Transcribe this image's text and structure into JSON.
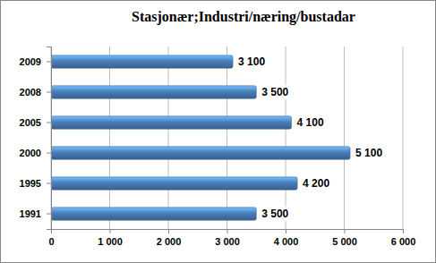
{
  "chart_data": {
    "type": "bar",
    "title": "Stasjonær;Industri/næring/bustadar",
    "orientation": "horizontal",
    "categories": [
      "1991",
      "1995",
      "2000",
      "2005",
      "2008",
      "2009"
    ],
    "values": [
      3500,
      4200,
      5100,
      4100,
      3500,
      3100
    ],
    "value_labels": [
      "3 500",
      "4 200",
      "5 100",
      "4 100",
      "3 500",
      "3 100"
    ],
    "data_labels": true,
    "color": "#4a7ebb",
    "xlim": [
      0,
      6000
    ],
    "xticks": [
      0,
      {
        "value": 1000,
        "label": "1 000"
      },
      {
        "value": 2000,
        "label": "2 000"
      },
      {
        "value": 3000,
        "label": "3 000"
      },
      {
        "value": 4000,
        "label": "4 000"
      },
      {
        "value": 5000,
        "label": "5 000"
      },
      {
        "value": 6000,
        "label": "6 000"
      }
    ],
    "grid": true
  }
}
